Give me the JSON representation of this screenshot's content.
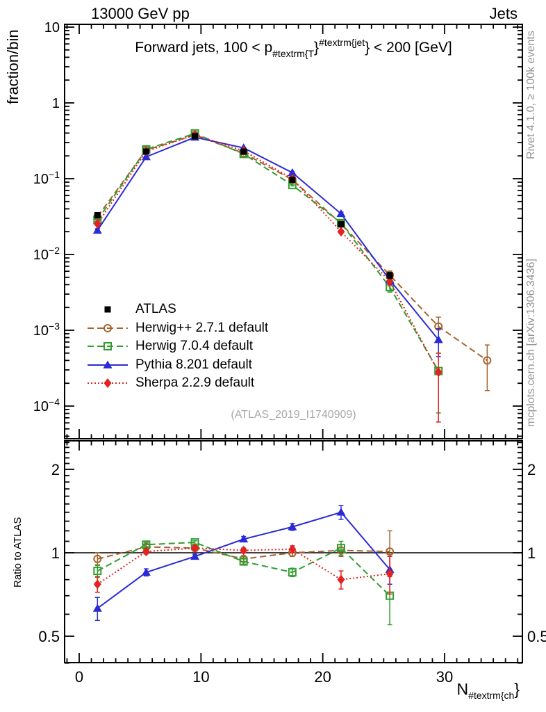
{
  "header": {
    "left": "13000 GeV pp",
    "right": "Jets"
  },
  "side_notes": {
    "top_right": "Rivet 4.1.0, ≥ 100k events",
    "bottom_right": "mcplots.cern.ch [arXiv:1306.3436]"
  },
  "main_panel": {
    "ylabel": "fraction/bin",
    "title": {
      "pre": "Forward jets, 100 < p",
      "sub": "#textrm{T",
      "mid": "}",
      "sup": "#textrm{jet",
      "post": "} < 200 [GeV]"
    },
    "watermark": "(ATLAS_2019_I1740909)"
  },
  "ratio_panel": {
    "ylabel": "Ratio to ATLAS"
  },
  "xaxis": {
    "label": {
      "pre": "N",
      "sub": "#textrm{ch",
      "post": "}"
    }
  },
  "chart_data": {
    "type": "line",
    "title": "Forward jets, 100 < pT(jet) < 200 [GeV]",
    "xlabel": "N_ch",
    "x_bin_centers": [
      1.5,
      5.5,
      9.5,
      13.5,
      17.5,
      21.5,
      25.5,
      29.5,
      33.5
    ],
    "xlim": [
      -1.2,
      36.4
    ],
    "xticks": [
      {
        "v": 0,
        "l": "0"
      },
      {
        "v": 10,
        "l": "10"
      },
      {
        "v": 20,
        "l": "20"
      },
      {
        "v": 30,
        "l": "30"
      }
    ],
    "x_minor_step": 1,
    "main": {
      "yscale": "log",
      "ylim": [
        3.7e-05,
        10.9
      ],
      "yticks": [
        {
          "v": 10,
          "m": "10"
        },
        {
          "v": 1,
          "m": "1"
        },
        {
          "v": 0.1,
          "m": "10",
          "e": "−1"
        },
        {
          "v": 0.01,
          "m": "10",
          "e": "−2"
        },
        {
          "v": 0.001,
          "m": "10",
          "e": "−3"
        },
        {
          "v": 0.0001,
          "m": "10",
          "e": "−4"
        }
      ]
    },
    "ratio": {
      "yscale": "log",
      "ylim": [
        0.4,
        2.54
      ],
      "reference": 1,
      "yticks": [
        {
          "v": 2,
          "l": "2"
        },
        {
          "v": 1,
          "l": "1"
        },
        {
          "v": 0.5,
          "l": "0.5"
        }
      ]
    },
    "legend_position": "middle-left",
    "series": [
      {
        "name": "atlas",
        "label": "ATLAS",
        "color": "#000000",
        "marker": "square-filled",
        "line": "none",
        "values": [
          0.033,
          0.228,
          0.363,
          0.228,
          0.097,
          0.025,
          0.0053
        ],
        "yerr_rel": [
          0.03,
          0.012,
          0.01,
          0.012,
          0.02,
          0.035,
          0.09
        ]
      },
      {
        "name": "herwigpp",
        "label": "Herwig++ 2.7.1 default",
        "color": "#a5642f",
        "marker": "circle-open",
        "line": "dashed",
        "values": [
          0.0314,
          0.239,
          0.378,
          0.217,
          0.097,
          0.0255,
          0.00535,
          0.00112,
          0.0004
        ],
        "yerr_rel": [
          0.04,
          0.015,
          0.01,
          0.015,
          0.025,
          0.05,
          0.13,
          0.33,
          0.6
        ],
        "ratio": [
          0.95,
          1.05,
          1.04,
          0.95,
          1.0,
          1.02,
          1.01
        ],
        "ratio_err": [
          0.05,
          0.02,
          0.015,
          0.02,
          0.03,
          0.05,
          0.19
        ]
      },
      {
        "name": "herwig7",
        "label": "Herwig 7.0.4 default",
        "color": "#2f9e2f",
        "marker": "square-open",
        "line": "dashed",
        "values": [
          0.0284,
          0.244,
          0.396,
          0.212,
          0.0824,
          0.026,
          0.00371,
          0.00029
        ],
        "yerr_rel": [
          0.04,
          0.015,
          0.01,
          0.015,
          0.025,
          0.05,
          0.14,
          0.72
        ],
        "ratio": [
          0.86,
          1.07,
          1.09,
          0.93,
          0.85,
          1.04,
          0.7
        ],
        "ratio_err": [
          0.045,
          0.02,
          0.015,
          0.02,
          0.03,
          0.06,
          0.15
        ]
      },
      {
        "name": "pythia",
        "label": "Pythia 8.201 default",
        "color": "#2b2bd5",
        "marker": "triangle-filled",
        "line": "solid",
        "values": [
          0.0208,
          0.194,
          0.352,
          0.255,
          0.12,
          0.0345,
          0.00461,
          0.00075
        ],
        "yerr_rel": [
          0.05,
          0.02,
          0.012,
          0.015,
          0.025,
          0.05,
          0.13,
          0.4
        ],
        "ratio": [
          0.63,
          0.85,
          0.97,
          1.12,
          1.24,
          1.4,
          0.87
        ],
        "ratio_err": [
          0.06,
          0.025,
          0.018,
          0.025,
          0.035,
          0.08,
          0.1
        ]
      },
      {
        "name": "sherpa",
        "label": "Sherpa 2.2.9 default",
        "color": "#e42222",
        "marker": "diamond-filled",
        "line": "dotted",
        "values": [
          0.0254,
          0.23,
          0.378,
          0.233,
          0.0999,
          0.02,
          0.00445,
          0.00028
        ],
        "yerr_rel": [
          0.045,
          0.015,
          0.01,
          0.015,
          0.025,
          0.05,
          0.13,
          0.78
        ],
        "ratio": [
          0.77,
          1.01,
          1.04,
          1.02,
          1.03,
          0.8,
          0.84
        ],
        "ratio_err": [
          0.05,
          0.02,
          0.015,
          0.02,
          0.03,
          0.06,
          0.13
        ]
      }
    ]
  }
}
